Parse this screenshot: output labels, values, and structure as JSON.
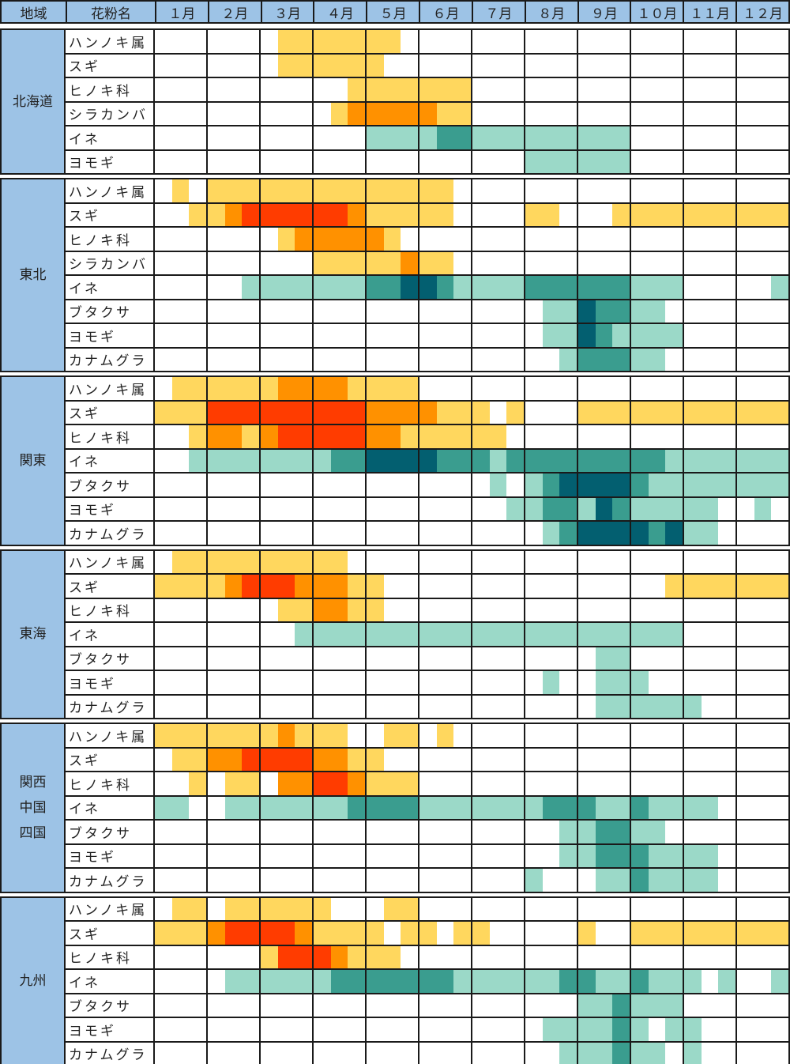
{
  "header": {
    "region": "地域",
    "pollen": "花粉名",
    "months": [
      "１月",
      "２月",
      "３月",
      "４月",
      "５月",
      "６月",
      "７月",
      "８月",
      "９月",
      "１０月",
      "１１月",
      "１２月"
    ]
  },
  "legend_colors": {
    "0": "#FFFFFF",
    "y": "#FFD75E",
    "o": "#FF9100",
    "r": "#FF3C00",
    "l": "#9BD9C8",
    "m": "#3A9D8F",
    "d": "#035F70"
  },
  "chart_data": {
    "type": "heatmap",
    "resolution": "each month split into thirds (early/mid/late); codes: 0 none, y/o/r tree pollen low/mid/high, l/m/d grass & weed pollen low/mid/high",
    "regions": [
      {
        "name": [
          "北海道"
        ],
        "rows": [
          {
            "pollen": "ハンノキ属",
            "pattern": "000 000 0yy yyy yy0 000 000 000 000 000 000 000"
          },
          {
            "pollen": "スギ",
            "pattern": "000 000 0yy yyy y00 000 000 000 000 000 000 000"
          },
          {
            "pollen": "ヒノキ科",
            "pattern": "000 000 000 00y yyy yyy 000 000 000 000 000 000"
          },
          {
            "pollen": "シラカンバ",
            "pattern": "000 000 000 0yo ooo oyy 000 000 000 000 000 000"
          },
          {
            "pollen": "イネ",
            "pattern": "000 000 000 000 lll lmm lll lll lll 000 000 000"
          },
          {
            "pollen": "ヨモギ",
            "pattern": "000 000 000 000 000 000 000 lll lll 000 000 000"
          }
        ]
      },
      {
        "name": [
          "東北"
        ],
        "rows": [
          {
            "pollen": "ハンノキ属",
            "pattern": "0y0 yyy yyy yyy yyy yy0 000 000 000 000 000 000"
          },
          {
            "pollen": "スギ",
            "pattern": "00y yor rrr rro yyy yy0 000 yy0 00y yyy yyy yyy"
          },
          {
            "pollen": "ヒノキ科",
            "pattern": "000 000 0yo ooo oy0 000 000 000 000 000 000 000"
          },
          {
            "pollen": "シラカンバ",
            "pattern": "000 000 000 yyy yyo yy0 000 000 000 000 000 000"
          },
          {
            "pollen": "イネ",
            "pattern": "000 00l lll lll mmd dml lll mmm mmm lll 000 00l"
          },
          {
            "pollen": "ブタクサ",
            "pattern": "000 000 000 000 000 000 000 0ll dmm ll0 000 000"
          },
          {
            "pollen": "ヨモギ",
            "pattern": "000 000 000 000 000 000 000 0ll dml lll 000 000"
          },
          {
            "pollen": "カナムグラ",
            "pattern": "000 000 000 000 000 000 000 00l mmm ll0 000 000"
          }
        ]
      },
      {
        "name": [
          "関東"
        ],
        "rows": [
          {
            "pollen": "ハンノキ属",
            "pattern": "0yy yyy yoo ooy yyy 000 000 000 000 000 000 000"
          },
          {
            "pollen": "スギ",
            "pattern": "yyy rrr rrr rrr ooo oyy y0y 000 yyy yyy yyy yyy"
          },
          {
            "pollen": "ヒノキ科",
            "pattern": "00y ooy orr rrr ooy yyy yy0 000 000 000 000 000"
          },
          {
            "pollen": "イネ",
            "pattern": "00l lll lll lmm ddd dmm mlm mmm mmm mml lll lll"
          },
          {
            "pollen": "ブタクサ",
            "pattern": "000 000 000 000 000 000 0l0 lmd ddd mll lll lll"
          },
          {
            "pollen": "ヨモギ",
            "pattern": "000 000 000 000 000 000 00l lmm ldm lll ll0 0l0"
          },
          {
            "pollen": "カナムグラ",
            "pattern": "000 000 000 000 000 000 000 0lm ddd dmd ll0 000"
          }
        ]
      },
      {
        "name": [
          "東海"
        ],
        "rows": [
          {
            "pollen": "ハンノキ属",
            "pattern": "0yy yyy yyy yy0 000 000 000 000 000 000 000 000"
          },
          {
            "pollen": "スギ",
            "pattern": "yyy yor rro ooy y00 000 000 000 000 00y yyy yyy"
          },
          {
            "pollen": "ヒノキ科",
            "pattern": "000 000 0yy ooy y00 000 000 000 000 000 000 000"
          },
          {
            "pollen": "イネ",
            "pattern": "000 000 00l lll lll lll lll lll lll lll 000 000"
          },
          {
            "pollen": "ブタクサ",
            "pattern": "000 000 000 000 000 000 000 000 0ll 000 000 000"
          },
          {
            "pollen": "ヨモギ",
            "pattern": "000 000 000 000 000 000 000 0l0 0ll l00 000 000"
          },
          {
            "pollen": "カナムグラ",
            "pattern": "000 000 000 000 000 000 000 000 0ll lll l00 000"
          }
        ]
      },
      {
        "name": [
          "関西",
          "中国",
          "四国"
        ],
        "rows": [
          {
            "pollen": "ハンノキ属",
            "pattern": "yyy yyy yoy yy0 0yy 0y0 000 000 000 000 000 000"
          },
          {
            "pollen": "スギ",
            "pattern": "0yy oor rrr ooy y00 000 000 000 000 000 000 000"
          },
          {
            "pollen": "ヒノキ科",
            "pattern": "00y 0yy 0oo rro yyy 000 000 000 000 000 000 000"
          },
          {
            "pollen": "イネ",
            "pattern": "ll0 0ll lll llm mmm lll lll lmm mll mll ll0 000"
          },
          {
            "pollen": "ブタクサ",
            "pattern": "000 000 000 000 000 000 000 00l lmm ll0 000 000"
          },
          {
            "pollen": "ヨモギ",
            "pattern": "000 000 000 000 000 000 000 00l lmm mll ll0 000"
          },
          {
            "pollen": "カナムグラ",
            "pattern": "000 000 000 000 000 000 000 l00 0ll mll ll0 000"
          }
        ]
      },
      {
        "name": [
          "九州"
        ],
        "rows": [
          {
            "pollen": "ハンノキ属",
            "pattern": "0yy 0yy yyy y00 0yy 000 000 000 000 000 000 000"
          },
          {
            "pollen": "スギ",
            "pattern": "yyy orr rro yyy y0y y0y y00 000 y00 yyy yyy yyy"
          },
          {
            "pollen": "ヒノキ科",
            "pattern": "000 000 yrr roy yy0 000 000 000 000 000 000 000"
          },
          {
            "pollen": "イネ",
            "pattern": "000 0ll lll lmm mmm mml lll llm mll mll l0l 00l"
          },
          {
            "pollen": "ブタクサ",
            "pattern": "000 000 000 000 000 000 000 000 llm lll 000 000"
          },
          {
            "pollen": "ヨモギ",
            "pattern": "000 000 000 000 000 000 000 0ll llm l0l l00 000"
          },
          {
            "pollen": "カナムグラ",
            "pattern": "000 000 000 000 000 000 000 00l llm ll0 l00 000"
          }
        ]
      }
    ]
  }
}
